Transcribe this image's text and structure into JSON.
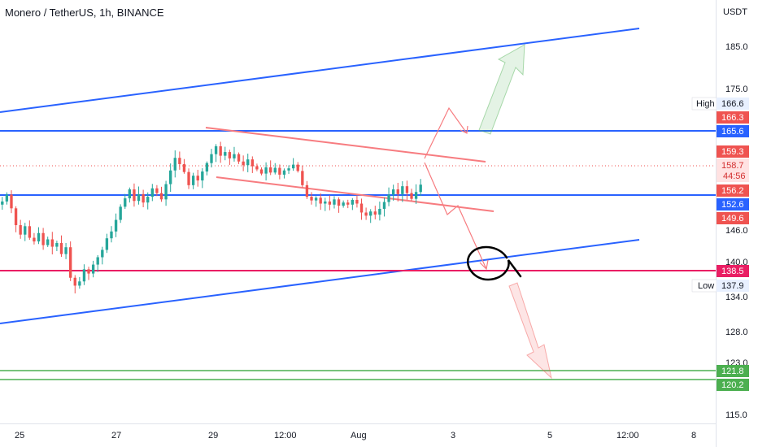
{
  "header": {
    "symbol": "Monero / TetherUS, 1h, BINANCE",
    "currency": "USDT"
  },
  "colors": {
    "up": "#26a69a",
    "down": "#ef5350",
    "blue": "#2962ff",
    "magenta": "#e91e63",
    "green": "#4caf50",
    "pink": "#f77c80",
    "ellipse": "#000000"
  },
  "chart_data": {
    "type": "candlestick",
    "title": "Monero / TetherUS, 1h, BINANCE",
    "ylabel": "USDT",
    "ylim": [
      113,
      193
    ],
    "yticks": [
      "185.0",
      "175.0",
      "146.0",
      "140.0",
      "134.0",
      "128.0",
      "123.0",
      "115.0"
    ],
    "x_labels": [
      "25",
      "27",
      "29",
      "12:00",
      "Aug",
      "3",
      "5",
      "12:00",
      "8"
    ],
    "ohlc_close_path": [
      155.5,
      156.8,
      154.2,
      151.0,
      149.2,
      150.8,
      148.6,
      147.9,
      149.5,
      147.2,
      148.3,
      146.9,
      147.6,
      145.5,
      146.8,
      141.0,
      139.5,
      140.3,
      142.6,
      141.8,
      143.5,
      144.9,
      146.3,
      148.5,
      149.8,
      152.0,
      154.5,
      156.1,
      157.8,
      155.6,
      156.9,
      155.3,
      156.4,
      158.0,
      157.1,
      155.9,
      158.8,
      161.4,
      163.8,
      162.6,
      161.1,
      158.6,
      160.4,
      159.5,
      161.2,
      162.8,
      164.5,
      166.0,
      164.2,
      164.9,
      163.7,
      164.5,
      163.1,
      162.4,
      163.5,
      162.2,
      161.6,
      160.8,
      162.0,
      161.0,
      161.9,
      160.6,
      161.4,
      161.8,
      162.5,
      161.3,
      158.6,
      156.4,
      155.7,
      156.2,
      155.1,
      155.5,
      154.9,
      155.9,
      154.7,
      155.3,
      154.9,
      155.8,
      155.1,
      153.4,
      152.8,
      153.6,
      153.0,
      154.1,
      155.4,
      156.8,
      157.8,
      156.9,
      158.4,
      157.1,
      156.0,
      157.3,
      158.7
    ],
    "current_price": "158.7",
    "countdown": "44:56",
    "price_badges": [
      {
        "text": "166.6",
        "kind": "high"
      },
      {
        "text": "166.3",
        "kind": "red"
      },
      {
        "text": "165.6",
        "kind": "blue"
      },
      {
        "text": "159.3",
        "kind": "red"
      },
      {
        "text": "158.7",
        "kind": "current"
      },
      {
        "text": "44:56",
        "kind": "countdown"
      },
      {
        "text": "156.2",
        "kind": "red"
      },
      {
        "text": "152.6",
        "kind": "blue"
      },
      {
        "text": "149.6",
        "kind": "red"
      },
      {
        "text": "138.5",
        "kind": "magenta"
      },
      {
        "text": "137.9",
        "kind": "low"
      },
      {
        "text": "121.8",
        "kind": "green"
      },
      {
        "text": "120.2",
        "kind": "green"
      }
    ],
    "high_label": "High",
    "low_label": "Low",
    "horizontal_levels": [
      {
        "price": "165.6",
        "color": "blue"
      },
      {
        "price": "152.6",
        "color": "blue"
      },
      {
        "price": "138.5",
        "color": "magenta"
      },
      {
        "price": "121.8",
        "color": "green"
      },
      {
        "price": "120.2",
        "color": "green"
      }
    ]
  }
}
